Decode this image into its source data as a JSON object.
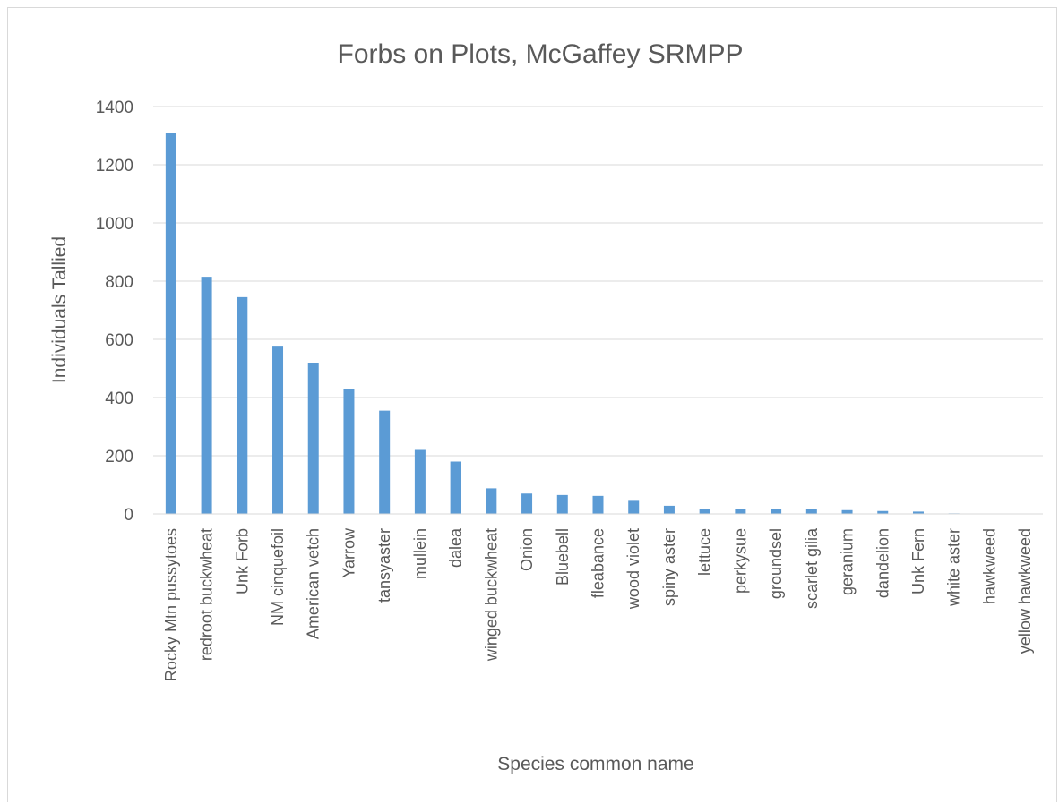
{
  "chart_data": {
    "type": "bar",
    "title": "Forbs on Plots, McGaffey SRMPP",
    "xlabel": "Species common name",
    "ylabel": "Individuals Tallied",
    "ylim": [
      0,
      1400
    ],
    "yticks": [
      0,
      200,
      400,
      600,
      800,
      1000,
      1200,
      1400
    ],
    "grid": true,
    "legend": "none",
    "bar_color": "#5b9bd5",
    "categories": [
      "Rocky Mtn pussytoes",
      "redroot buckwheat",
      "Unk Forb",
      "NM cinquefoil",
      "American vetch",
      "Yarrow",
      "tansyaster",
      "mullein",
      "dalea",
      "winged buckwheat",
      "Onion",
      "Bluebell",
      "fleabance",
      "wood violet",
      "spiny aster",
      "lettuce",
      "perkysue",
      "groundsel",
      "scarlet gilia",
      "geranium",
      "dandelion",
      "Unk Fern",
      "white aster",
      "hawkweed",
      "yellow hawkweed"
    ],
    "values": [
      1310,
      815,
      745,
      575,
      520,
      430,
      355,
      220,
      180,
      88,
      70,
      65,
      62,
      45,
      28,
      18,
      17,
      17,
      17,
      13,
      10,
      8,
      2,
      1,
      1
    ]
  }
}
